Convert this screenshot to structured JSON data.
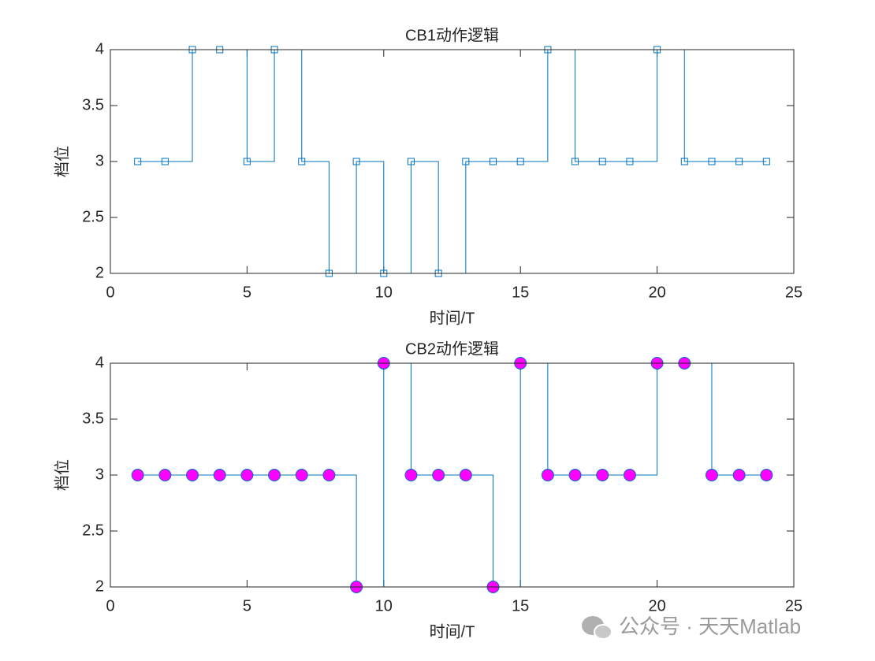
{
  "chart_data": [
    {
      "type": "line",
      "title": "CB1动作逻辑",
      "xlabel": "时间/T",
      "ylabel": "档位",
      "x": [
        1,
        2,
        3,
        4,
        5,
        6,
        7,
        8,
        9,
        10,
        11,
        12,
        13,
        14,
        15,
        16,
        17,
        18,
        19,
        20,
        21,
        22,
        23,
        24
      ],
      "series": [
        {
          "color": "#0072bd",
          "marker": "square",
          "marker_fill": "none",
          "values": [
            3,
            3,
            4,
            4,
            3,
            4,
            3,
            2,
            3,
            2,
            3,
            2,
            3,
            3,
            3,
            4,
            3,
            3,
            3,
            4,
            3,
            3,
            3,
            3
          ]
        }
      ],
      "step": "post",
      "xlim": [
        0,
        25
      ],
      "xticks": [
        0,
        5,
        10,
        15,
        20,
        25
      ],
      "ylim": [
        2,
        4
      ],
      "yticks": [
        2,
        2.5,
        3,
        3.5,
        4
      ]
    },
    {
      "type": "line",
      "title": "CB2动作逻辑",
      "xlabel": "时间/T",
      "ylabel": "档位",
      "x": [
        1,
        2,
        3,
        4,
        5,
        6,
        7,
        8,
        9,
        10,
        11,
        12,
        13,
        14,
        15,
        16,
        17,
        18,
        19,
        20,
        21,
        22,
        23,
        24
      ],
      "series": [
        {
          "color": "#0072bd",
          "marker": "circle",
          "marker_fill": "#ff00ff",
          "values": [
            3,
            3,
            3,
            3,
            3,
            3,
            3,
            3,
            2,
            4,
            3,
            3,
            3,
            2,
            4,
            3,
            3,
            3,
            3,
            4,
            4,
            3,
            3,
            3
          ]
        }
      ],
      "step": "post",
      "xlim": [
        0,
        25
      ],
      "xticks": [
        0,
        5,
        10,
        15,
        20,
        25
      ],
      "ylim": [
        2,
        4
      ],
      "yticks": [
        2,
        2.5,
        3,
        3.5,
        4
      ]
    }
  ],
  "watermark": "公众号 · 天天Matlab"
}
